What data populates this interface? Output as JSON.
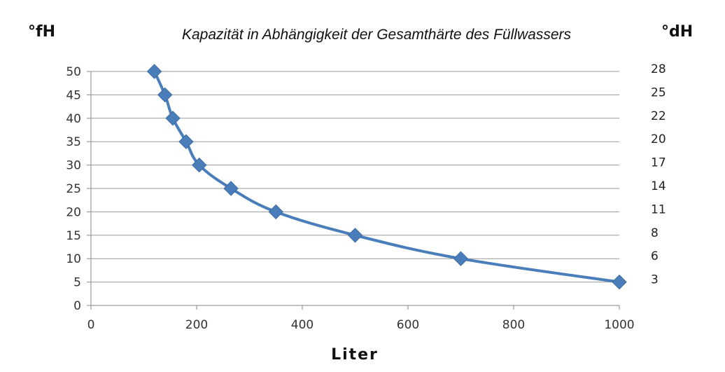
{
  "chart_data": {
    "type": "line",
    "title": "Kapazität in Abhängigkeit der Gesamthärte des Füllwassers",
    "xlabel": "Liter",
    "ylabel": "°fH",
    "ylabel_right": "°dH",
    "xlim": [
      0,
      1000
    ],
    "ylim": [
      0,
      50
    ],
    "x_ticks": [
      0,
      200,
      400,
      600,
      800,
      1000
    ],
    "y_ticks": [
      0,
      5,
      10,
      15,
      20,
      25,
      30,
      35,
      40,
      45,
      50
    ],
    "y_right_ticks": [
      {
        "at": 50,
        "label": "28"
      },
      {
        "at": 45,
        "label": "25"
      },
      {
        "at": 40,
        "label": "22"
      },
      {
        "at": 35,
        "label": "20"
      },
      {
        "at": 30,
        "label": "17"
      },
      {
        "at": 25,
        "label": "14"
      },
      {
        "at": 20,
        "label": "11"
      },
      {
        "at": 15,
        "label": "8"
      },
      {
        "at": 10,
        "label": "6"
      },
      {
        "at": 5,
        "label": "3"
      }
    ],
    "grid": true,
    "legend": "none",
    "color": "#4a7ebb",
    "series": [
      {
        "x": [
          120,
          140,
          155,
          180,
          205,
          265,
          350,
          500,
          700,
          1000
        ],
        "y": [
          50,
          45,
          40,
          35,
          30,
          25,
          20,
          15,
          10,
          5
        ]
      }
    ]
  }
}
